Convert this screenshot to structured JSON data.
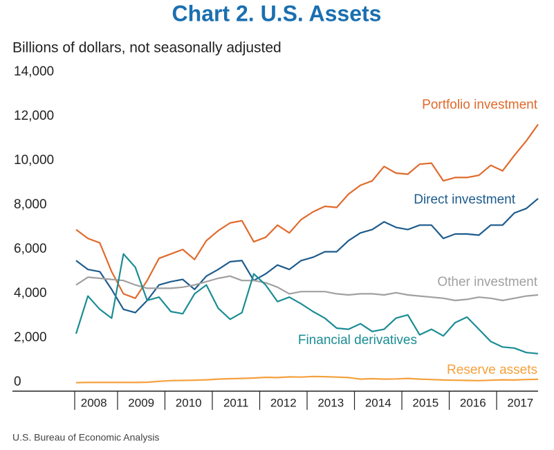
{
  "chart_data": {
    "type": "line",
    "title": "Chart 2. U.S. Assets",
    "subtitle": "Billions of dollars, not seasonally adjusted",
    "source": "U.S. Bureau of Economic Analysis",
    "categories": [
      "2008",
      null,
      null,
      null,
      "2009",
      null,
      null,
      null,
      "2010",
      null,
      null,
      null,
      "2011",
      null,
      null,
      null,
      "2012",
      null,
      null,
      null,
      "2013",
      null,
      null,
      null,
      "2014",
      null,
      null,
      null,
      "2015",
      null,
      null,
      null,
      "2016",
      null,
      null,
      null,
      "2017",
      null,
      null,
      null
    ],
    "ylim": [
      0,
      14000
    ],
    "yticks": [
      0,
      {
        "value": 2000,
        "label": "2,000"
      },
      {
        "value": 4000,
        "label": "4,000"
      },
      {
        "value": 6000,
        "label": "6,000"
      },
      {
        "value": 8000,
        "label": "8,000"
      },
      {
        "value": 10000,
        "label": "10,000"
      },
      {
        "value": 12000,
        "label": "12,000"
      },
      {
        "value": 14000,
        "label": "14,000"
      }
    ],
    "grid": false,
    "series": [
      {
        "name": "Portfolio investment",
        "color": "#e06a2c",
        "values": [
          7200,
          6800,
          6600,
          5300,
          4300,
          4100,
          4900,
          5900,
          6100,
          6300,
          5850,
          6700,
          7150,
          7500,
          7600,
          6650,
          6850,
          7400,
          7050,
          7650,
          8000,
          8250,
          8200,
          8800,
          9200,
          9400,
          10050,
          9750,
          9700,
          10150,
          10200,
          9400,
          9550,
          9550,
          9650,
          10100,
          9850,
          10550,
          11200,
          11950
        ]
      },
      {
        "name": "Direct investment",
        "color": "#1d5b8c",
        "values": [
          5800,
          5400,
          5300,
          4500,
          3600,
          3450,
          4000,
          4700,
          4850,
          4950,
          4500,
          5100,
          5400,
          5750,
          5800,
          4900,
          5200,
          5600,
          5400,
          5800,
          5950,
          6200,
          6200,
          6700,
          7050,
          7200,
          7550,
          7300,
          7200,
          7400,
          7400,
          6800,
          7000,
          7000,
          6950,
          7400,
          7400,
          7950,
          8150,
          8600
        ]
      },
      {
        "name": "Other investment",
        "color": "#a0a0a0",
        "values": [
          4700,
          5050,
          5000,
          4950,
          4900,
          4700,
          4550,
          4550,
          4550,
          4600,
          4700,
          4850,
          5000,
          5100,
          4900,
          4900,
          4800,
          4600,
          4300,
          4400,
          4400,
          4400,
          4300,
          4250,
          4300,
          4300,
          4250,
          4350,
          4250,
          4200,
          4150,
          4100,
          4000,
          4050,
          4150,
          4100,
          4000,
          4100,
          4200,
          4250
        ]
      },
      {
        "name": "Financial derivatives",
        "color": "#1a8c94",
        "values": [
          2500,
          4200,
          3600,
          3200,
          6100,
          5500,
          4000,
          4150,
          3500,
          3400,
          4300,
          4700,
          3650,
          3150,
          3450,
          5200,
          4700,
          3950,
          4150,
          3850,
          3500,
          3200,
          2750,
          2700,
          2950,
          2600,
          2700,
          3200,
          3350,
          2450,
          2700,
          2400,
          3000,
          3250,
          2700,
          2150,
          1900,
          1850,
          1650,
          1600
        ]
      },
      {
        "name": "Reserve assets",
        "color": "#f5a03c",
        "values": [
          290,
          300,
          300,
          300,
          300,
          300,
          310,
          350,
          380,
          390,
          400,
          420,
          450,
          470,
          480,
          500,
          530,
          520,
          550,
          540,
          570,
          560,
          540,
          520,
          450,
          470,
          450,
          460,
          480,
          450,
          430,
          410,
          400,
          390,
          380,
          400,
          420,
          410,
          430,
          440
        ]
      }
    ]
  }
}
